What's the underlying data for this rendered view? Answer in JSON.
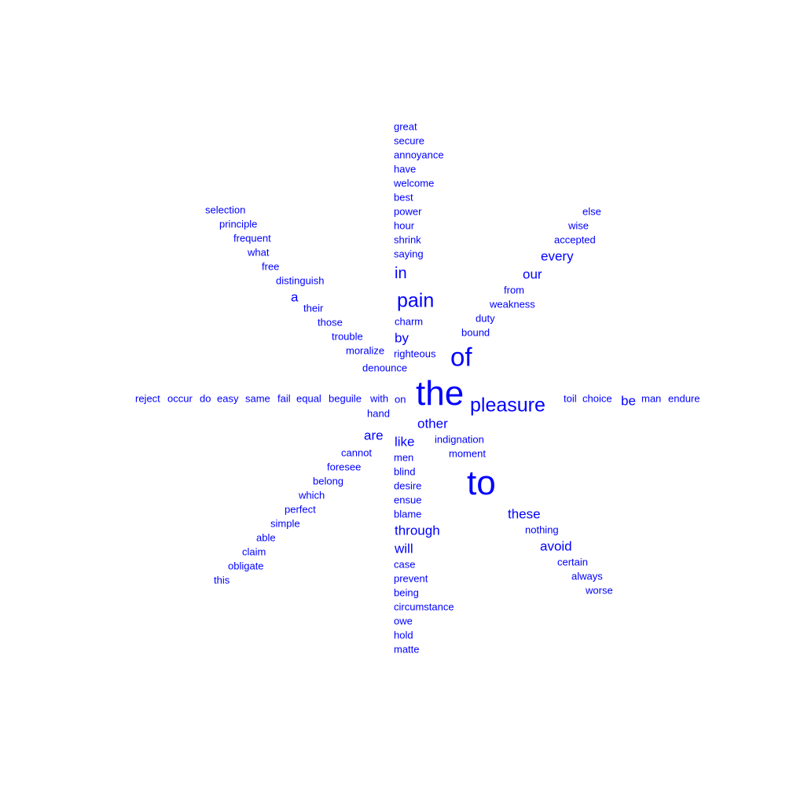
{
  "colors": {
    "word": "#0000ff",
    "background": "#ffffff"
  },
  "words": [
    "great",
    "secure",
    "annoyance",
    "have",
    "welcome",
    "best",
    "power",
    "hour",
    "shrink",
    "saying",
    "in",
    "pain",
    "charm",
    "by",
    "righteous",
    "selection",
    "principle",
    "frequent",
    "what",
    "free",
    "distinguish",
    "a",
    "their",
    "those",
    "trouble",
    "moralize",
    "denounce",
    "else",
    "wise",
    "accepted",
    "every",
    "our",
    "from",
    "weakness",
    "duty",
    "bound",
    "of",
    "reject",
    "occur",
    "do",
    "easy",
    "same",
    "fail",
    "equal",
    "beguile",
    "with",
    "on",
    "hand",
    "the",
    "pleasure",
    "toil",
    "choice",
    "be",
    "man",
    "endure",
    "other",
    "are",
    "like",
    "indignation",
    "moment",
    "men",
    "cannot",
    "foresee",
    "belong",
    "which",
    "perfect",
    "simple",
    "able",
    "claim",
    "obligate",
    "this",
    "blind",
    "desire",
    "ensue",
    "blame",
    "through",
    "will",
    "case",
    "prevent",
    "being",
    "circumstance",
    "owe",
    "hold",
    "matte",
    "to",
    "these",
    "nothing",
    "avoid",
    "certain",
    "always",
    "worse"
  ]
}
